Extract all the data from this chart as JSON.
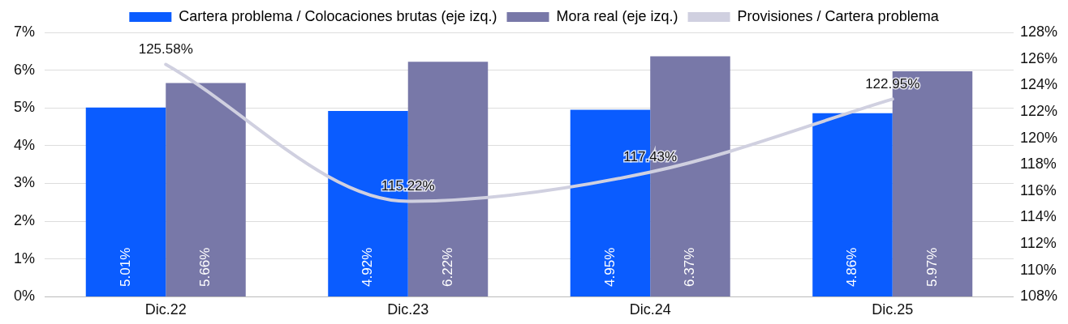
{
  "chart_data": {
    "type": "bar",
    "categories": [
      "Dic.22",
      "Dic.23",
      "Dic.24",
      "Dic.25"
    ],
    "series": [
      {
        "name": "Cartera problema / Colocaciones brutas (eje izq.)",
        "color": "#0a5cff",
        "values": [
          5.01,
          4.92,
          4.95,
          4.86
        ],
        "value_labels": [
          "5.01%",
          "4.92%",
          "4.95%",
          "4.86%"
        ]
      },
      {
        "name": "Mora real (eje izq.)",
        "color": "#7878a8",
        "values": [
          5.66,
          6.22,
          6.37,
          5.97
        ],
        "value_labels": [
          "5.66%",
          "6.22%",
          "6.37%",
          "5.97%"
        ]
      },
      {
        "name": "Provisiones / Cartera problema",
        "type": "line",
        "axis": "y2",
        "color": "#d0d0e0",
        "values": [
          125.58,
          115.22,
          117.43,
          122.95
        ],
        "value_labels": [
          "125.58%",
          "115.22%",
          "117.43%",
          "122.95%"
        ]
      }
    ],
    "ylim": [
      0,
      7
    ],
    "yticks": [
      {
        "value": 0,
        "label": "0%"
      },
      {
        "value": 1,
        "label": "1%"
      },
      {
        "value": 2,
        "label": "2%"
      },
      {
        "value": 3,
        "label": "3%"
      },
      {
        "value": 4,
        "label": "4%"
      },
      {
        "value": 5,
        "label": "5%"
      },
      {
        "value": 6,
        "label": "6%"
      },
      {
        "value": 7,
        "label": "7%"
      }
    ],
    "y2lim": [
      108,
      128
    ],
    "y2ticks": [
      {
        "value": 108,
        "label": "108%"
      },
      {
        "value": 110,
        "label": "110%"
      },
      {
        "value": 112,
        "label": "112%"
      },
      {
        "value": 114,
        "label": "114%"
      },
      {
        "value": 116,
        "label": "116%"
      },
      {
        "value": 118,
        "label": "118%"
      },
      {
        "value": 120,
        "label": "120%"
      },
      {
        "value": 122,
        "label": "122%"
      },
      {
        "value": 124,
        "label": "124%"
      },
      {
        "value": 126,
        "label": "126%"
      },
      {
        "value": 128,
        "label": "128%"
      }
    ],
    "grid": "y",
    "legend": "top",
    "marker": "none",
    "line_style": "solid"
  }
}
